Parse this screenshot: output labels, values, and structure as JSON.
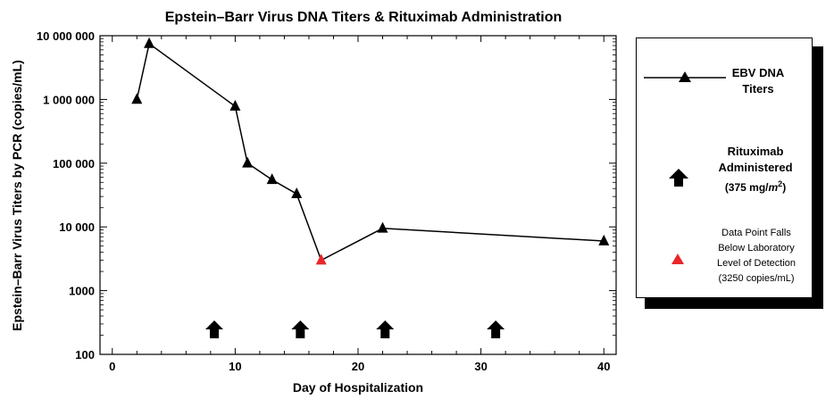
{
  "chart_data": {
    "type": "line",
    "title": "Epstein–Barr Virus DNA Titers & Rituximab Administration",
    "xlabel": "Day of Hospitalization",
    "ylabel": "Epstein–Barr Virus Titers by PCR (copies/mL)",
    "xlim": [
      -1,
      41
    ],
    "ylim": [
      100,
      10000000
    ],
    "yscale": "log",
    "x_ticks": [
      0,
      10,
      20,
      30,
      40
    ],
    "y_ticks": [
      100,
      1000,
      10000,
      100000,
      1000000,
      10000000
    ],
    "y_tick_labels": [
      "100",
      "1000",
      "10 000",
      "100 000",
      "1 000 000",
      "10 000 000"
    ],
    "series": [
      {
        "name": "EBV DNA Titers",
        "x": [
          2,
          3,
          10,
          11,
          13,
          15,
          17,
          22,
          40
        ],
        "y": [
          1000000,
          7500000,
          780000,
          100000,
          55000,
          33000,
          3000,
          9500,
          6000
        ],
        "color": "#000000",
        "below_detection_indices": [
          6
        ],
        "below_detection_color": "#e8262a"
      }
    ],
    "rituximab_days": [
      8.3,
      15.3,
      22.2,
      31.2
    ],
    "legend": {
      "placement": "right",
      "series_label_line1": "EBV DNA",
      "series_label_line2": "Titers",
      "rituximab_line1": "Rituximab",
      "rituximab_line2": "Administered",
      "rituximab_dose_prefix": "(375 mg/",
      "rituximab_dose_unit": "m",
      "rituximab_dose_exp": "2",
      "rituximab_dose_suffix": ")",
      "detection_line1": "Data Point Falls",
      "detection_line2": "Below Laboratory",
      "detection_line3": "Level of Detection",
      "detection_line4": "(3250 copies/mL)"
    },
    "grid": false
  }
}
